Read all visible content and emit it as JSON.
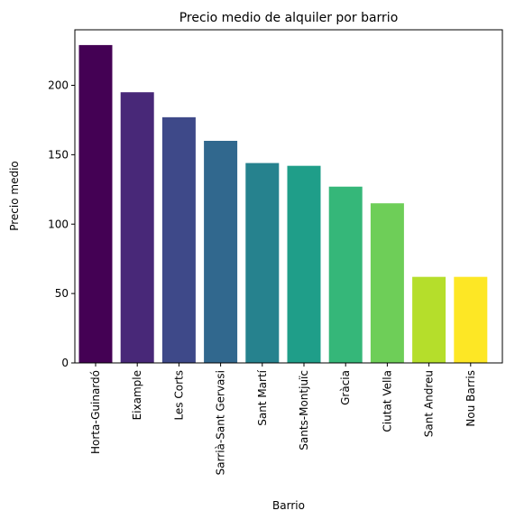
{
  "chart_data": {
    "type": "bar",
    "title": "Precio medio de alquiler por barrio",
    "xlabel": "Barrio",
    "ylabel": "Precio medio",
    "categories": [
      "Horta-Guinardó",
      "Eixample",
      "Les Corts",
      "Sarrià-Sant Gervasi",
      "Sant Martí",
      "Sants-Montjuïc",
      "Gràcia",
      "Ciutat Vella",
      "Sant Andreu",
      "Nou Barris"
    ],
    "values": [
      229,
      195,
      177,
      160,
      144,
      142,
      127,
      115,
      62,
      62
    ],
    "colors": [
      "#440154",
      "#482878",
      "#3e4989",
      "#31688e",
      "#26828e",
      "#1f9e89",
      "#35b779",
      "#6ece58",
      "#b5de2b",
      "#fde725"
    ],
    "yticks": [
      0,
      50,
      100,
      150,
      200
    ],
    "ylim": [
      0,
      240
    ],
    "grid": false,
    "legend": "none"
  }
}
